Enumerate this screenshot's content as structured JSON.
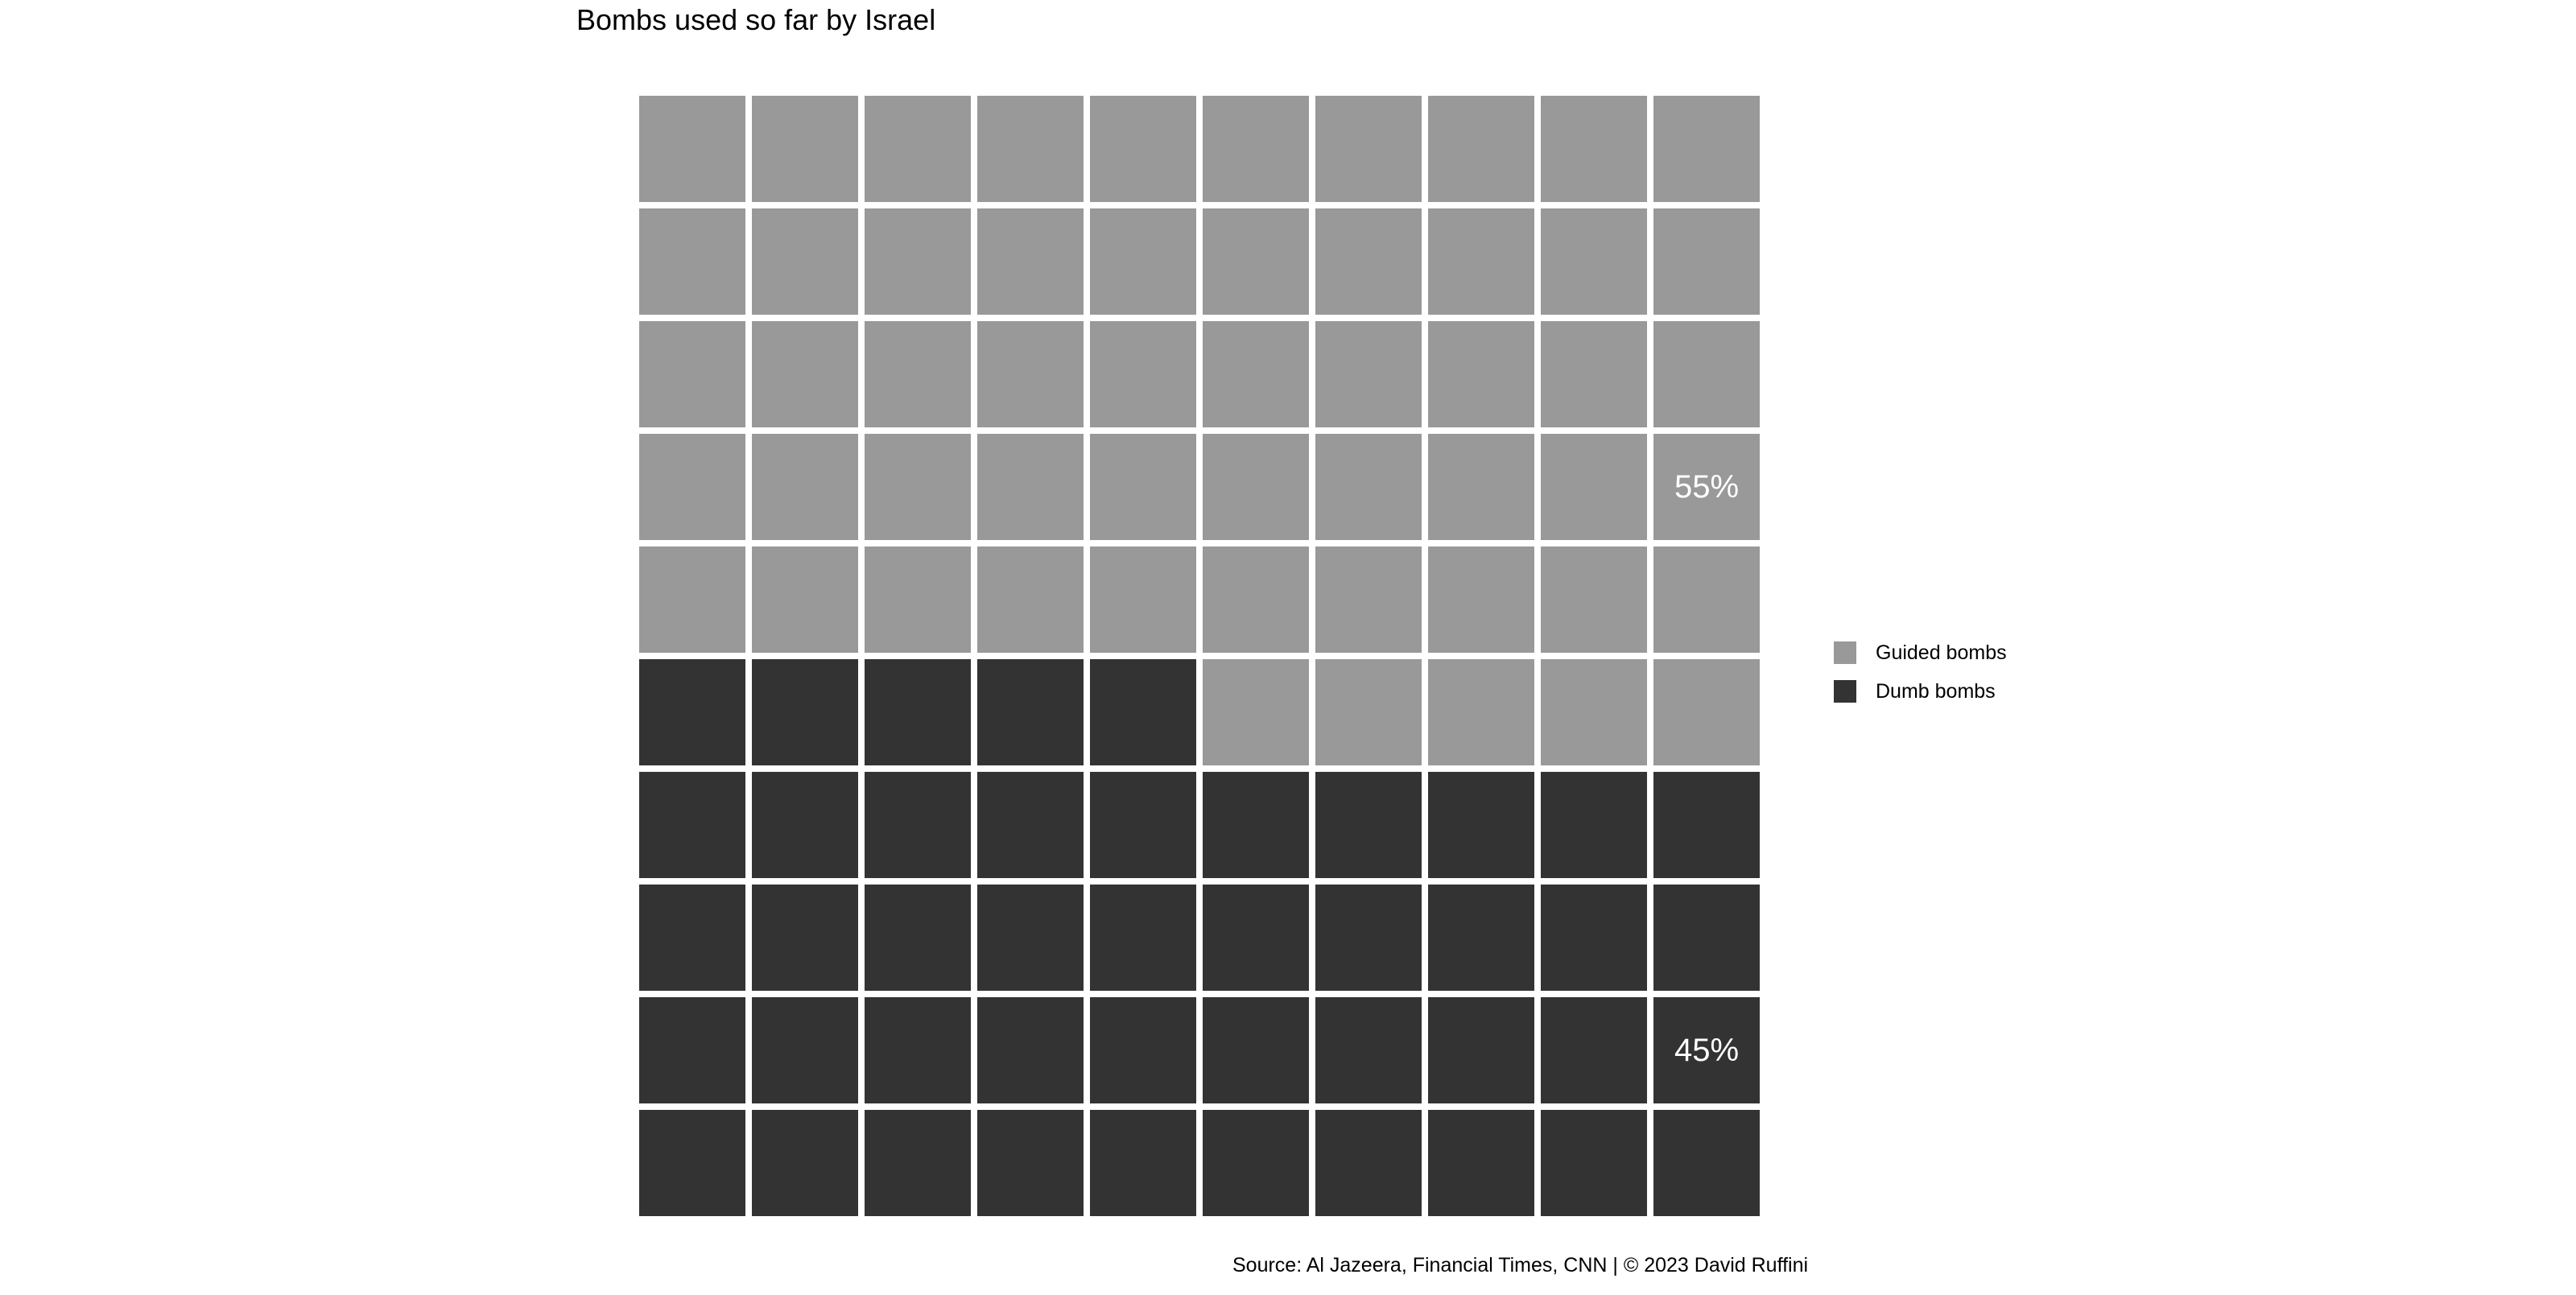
{
  "chart_data": {
    "type": "waffle",
    "title": "Bombs used so far by Israel",
    "grid": {
      "rows": 10,
      "cols": 10
    },
    "categories": [
      {
        "name": "Guided bombs",
        "value": 55,
        "label": "55%",
        "color": "#999999"
      },
      {
        "name": "Dumb bombs",
        "value": 45,
        "label": "45%",
        "color": "#333333"
      }
    ],
    "legend_placement": "right",
    "source": "Source: Al Jazeera, Financial Times, CNN | © 2023 David Ruffini"
  }
}
